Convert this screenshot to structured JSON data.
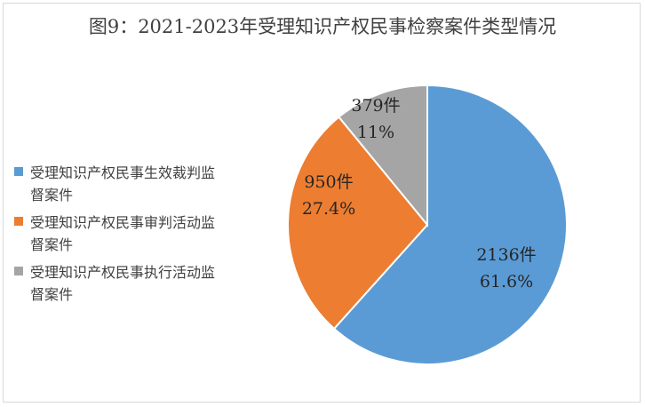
{
  "chart_data": {
    "type": "pie",
    "title": "图9：2021-2023年受理知识产权民事检察案件类型情况",
    "slices": [
      {
        "name": "受理知识产权民事生效裁判监督案件",
        "value": 2136,
        "count_label": "2136件",
        "percent_label": "61.6%",
        "color": "#5b9bd5"
      },
      {
        "name": "受理知识产权民事审判活动监督案件",
        "value": 950,
        "count_label": "950件",
        "percent_label": "27.4%",
        "color": "#ed7d31"
      },
      {
        "name": "受理知识产权民事执行活动监督案件",
        "value": 379,
        "count_label": "379件",
        "percent_label": "11%",
        "color": "#a5a5a5"
      }
    ],
    "legend_position": "left",
    "start_angle": "12 o'clock",
    "direction": "clockwise"
  }
}
